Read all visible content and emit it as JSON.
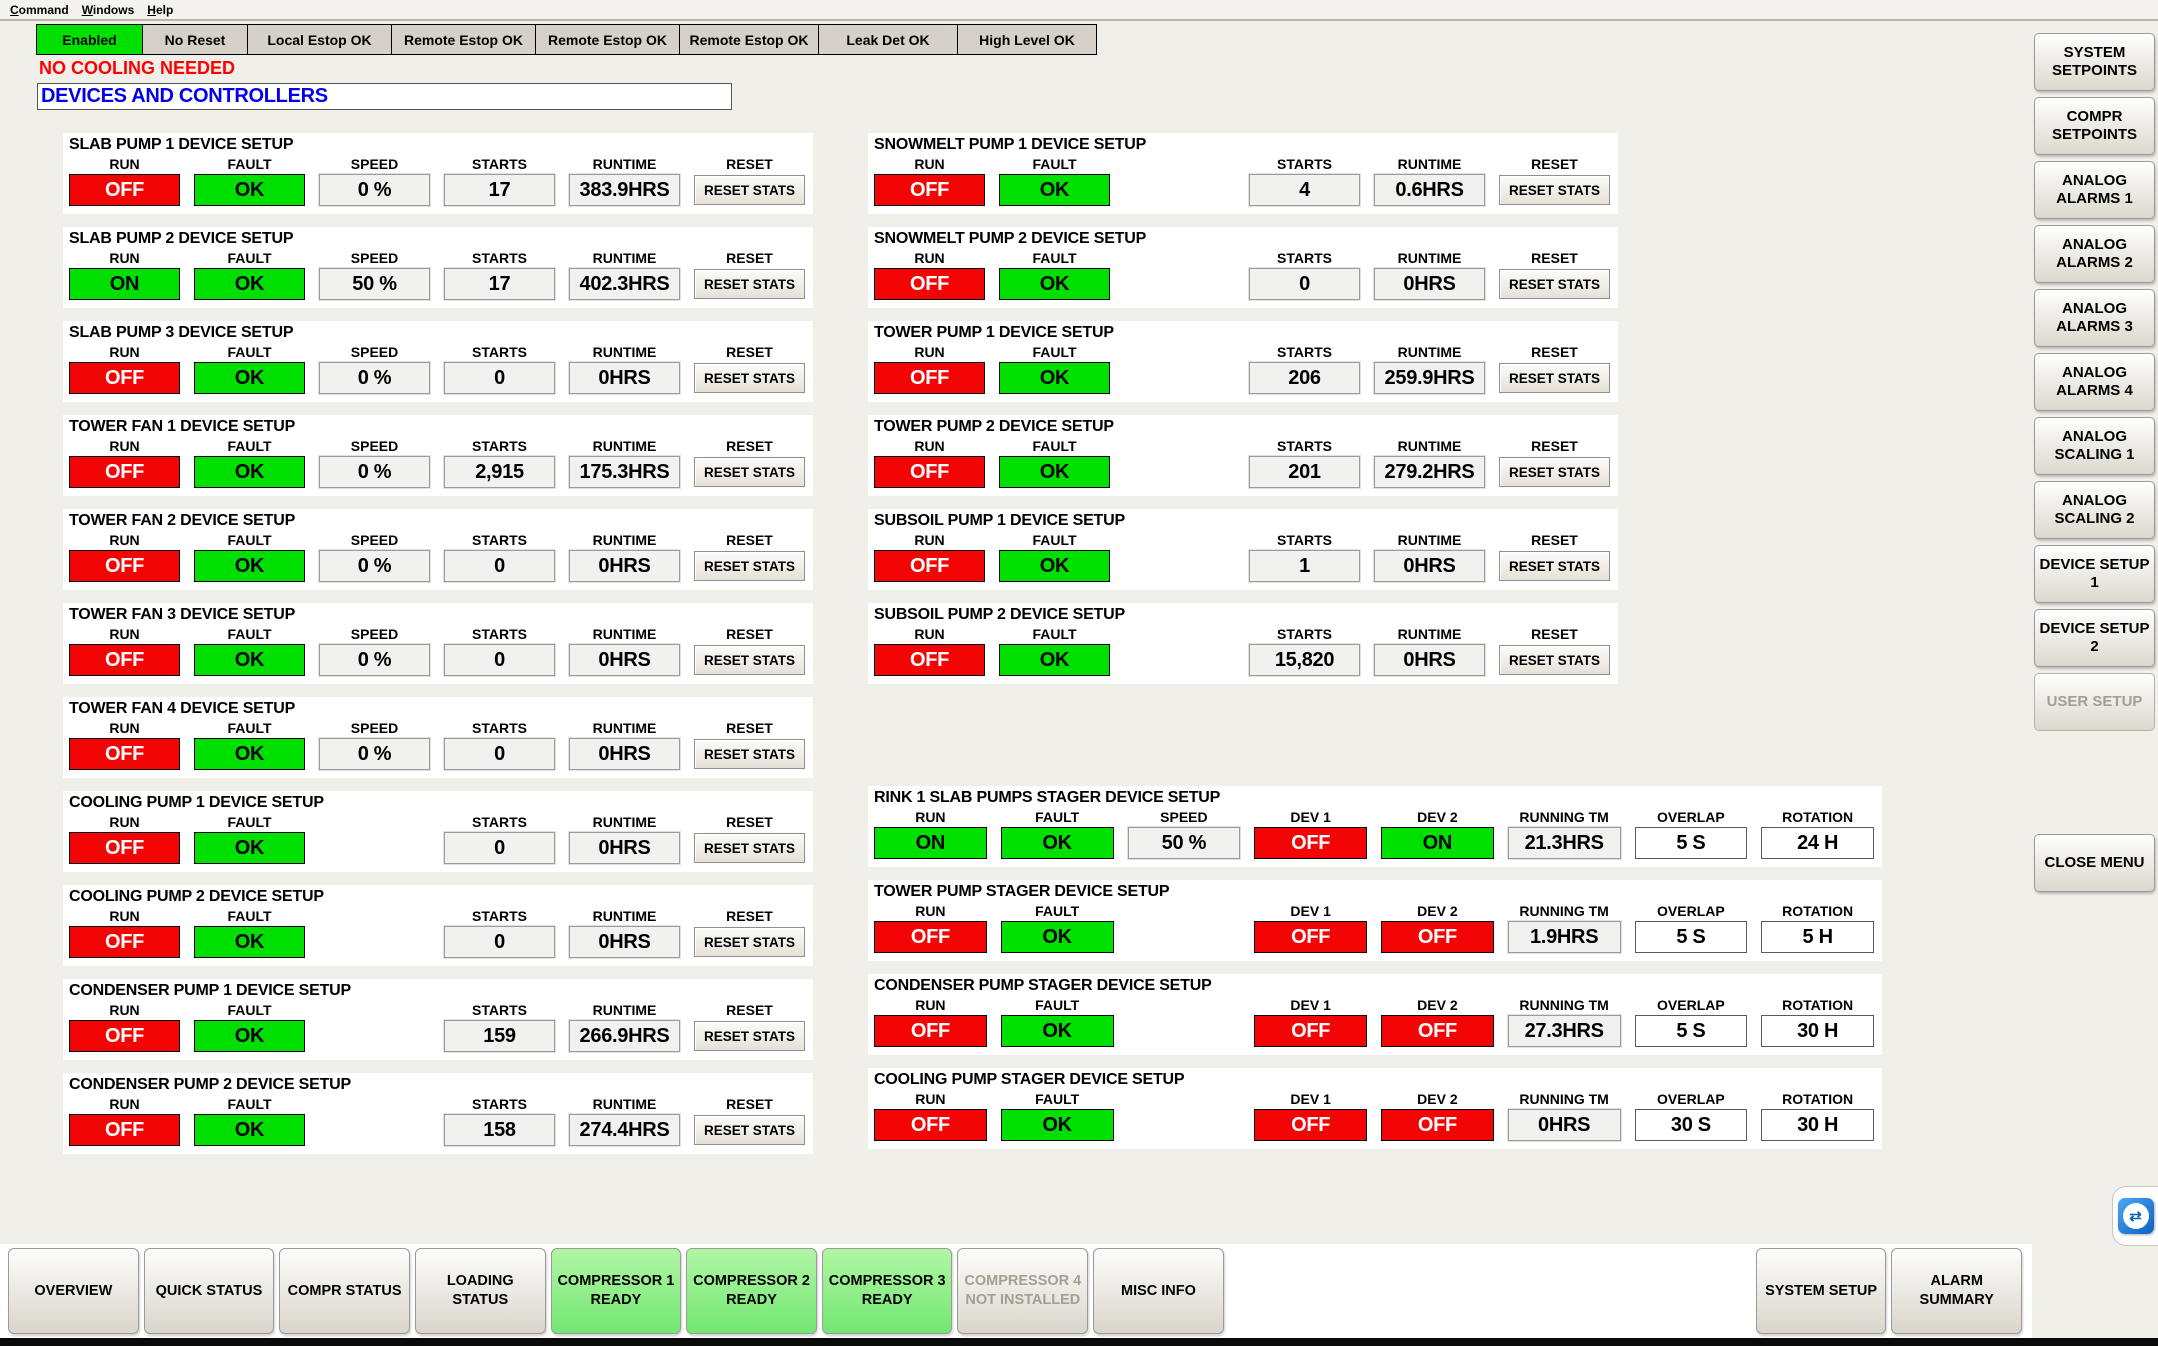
{
  "menu": {
    "items": [
      {
        "label": "Command"
      },
      {
        "label": "Windows"
      },
      {
        "label": "Help"
      }
    ]
  },
  "status_bar": {
    "buttons": [
      {
        "label": "Enabled",
        "highlight": "green"
      },
      {
        "label": "No Reset"
      },
      {
        "label": "Local Estop OK"
      },
      {
        "label": "Remote Estop OK"
      },
      {
        "label": "Remote Estop OK"
      },
      {
        "label": "Remote Estop OK"
      },
      {
        "label": "Leak Det OK"
      },
      {
        "label": "High Level OK"
      }
    ]
  },
  "messages": {
    "cooling_status": "NO COOLING NEEDED",
    "page_title": "DEVICES AND CONTROLLERS"
  },
  "labels": {
    "run": "RUN",
    "fault": "FAULT",
    "speed": "SPEED",
    "starts": "STARTS",
    "runtime": "RUNTIME",
    "reset": "RESET",
    "reset_stats": "RESET STATS",
    "dev1": "DEV 1",
    "dev2": "DEV 2",
    "running_tm": "RUNNING TM",
    "overlap": "OVERLAP",
    "rotation": "ROTATION"
  },
  "devices_left": [
    {
      "title": "SLAB PUMP 1 DEVICE SETUP",
      "run": "OFF",
      "run_on": false,
      "fault": "OK",
      "speed": "0 %",
      "starts": "17",
      "runtime": "383.9HRS"
    },
    {
      "title": "SLAB PUMP 2 DEVICE SETUP",
      "run": "ON",
      "run_on": true,
      "fault": "OK",
      "speed": "50 %",
      "starts": "17",
      "runtime": "402.3HRS"
    },
    {
      "title": "SLAB PUMP 3 DEVICE SETUP",
      "run": "OFF",
      "run_on": false,
      "fault": "OK",
      "speed": "0 %",
      "starts": "0",
      "runtime": "0HRS"
    },
    {
      "title": "TOWER FAN 1 DEVICE SETUP",
      "run": "OFF",
      "run_on": false,
      "fault": "OK",
      "speed": "0 %",
      "starts": "2,915",
      "runtime": "175.3HRS"
    },
    {
      "title": "TOWER FAN 2 DEVICE SETUP",
      "run": "OFF",
      "run_on": false,
      "fault": "OK",
      "speed": "0 %",
      "starts": "0",
      "runtime": "0HRS"
    },
    {
      "title": "TOWER FAN 3 DEVICE SETUP",
      "run": "OFF",
      "run_on": false,
      "fault": "OK",
      "speed": "0 %",
      "starts": "0",
      "runtime": "0HRS"
    },
    {
      "title": "TOWER FAN 4 DEVICE SETUP",
      "run": "OFF",
      "run_on": false,
      "fault": "OK",
      "speed": "0 %",
      "starts": "0",
      "runtime": "0HRS"
    },
    {
      "title": "COOLING PUMP 1 DEVICE SETUP",
      "run": "OFF",
      "run_on": false,
      "fault": "OK",
      "speed": null,
      "starts": "0",
      "runtime": "0HRS"
    },
    {
      "title": "COOLING PUMP 2 DEVICE SETUP",
      "run": "OFF",
      "run_on": false,
      "fault": "OK",
      "speed": null,
      "starts": "0",
      "runtime": "0HRS"
    },
    {
      "title": "CONDENSER PUMP 1 DEVICE SETUP",
      "run": "OFF",
      "run_on": false,
      "fault": "OK",
      "speed": null,
      "starts": "159",
      "runtime": "266.9HRS"
    },
    {
      "title": "CONDENSER PUMP 2 DEVICE SETUP",
      "run": "OFF",
      "run_on": false,
      "fault": "OK",
      "speed": null,
      "starts": "158",
      "runtime": "274.4HRS"
    }
  ],
  "devices_right": [
    {
      "title": "SNOWMELT PUMP 1 DEVICE SETUP",
      "run": "OFF",
      "run_on": false,
      "fault": "OK",
      "speed": null,
      "starts": "4",
      "runtime": "0.6HRS"
    },
    {
      "title": "SNOWMELT PUMP 2 DEVICE SETUP",
      "run": "OFF",
      "run_on": false,
      "fault": "OK",
      "speed": null,
      "starts": "0",
      "runtime": "0HRS"
    },
    {
      "title": "TOWER PUMP 1 DEVICE SETUP",
      "run": "OFF",
      "run_on": false,
      "fault": "OK",
      "speed": null,
      "starts": "206",
      "runtime": "259.9HRS"
    },
    {
      "title": "TOWER PUMP 2 DEVICE SETUP",
      "run": "OFF",
      "run_on": false,
      "fault": "OK",
      "speed": null,
      "starts": "201",
      "runtime": "279.2HRS"
    },
    {
      "title": "SUBSOIL PUMP 1 DEVICE SETUP",
      "run": "OFF",
      "run_on": false,
      "fault": "OK",
      "speed": null,
      "starts": "1",
      "runtime": "0HRS"
    },
    {
      "title": "SUBSOIL PUMP 2 DEVICE SETUP",
      "run": "OFF",
      "run_on": false,
      "fault": "OK",
      "speed": null,
      "starts": "15,820",
      "runtime": "0HRS"
    }
  ],
  "stagers": [
    {
      "title": "RINK 1 SLAB PUMPS STAGER DEVICE SETUP",
      "run": "ON",
      "run_on": true,
      "fault": "OK",
      "speed": "50 %",
      "dev1": "OFF",
      "dev1_on": false,
      "dev2": "ON",
      "dev2_on": true,
      "running_tm": "21.3HRS",
      "overlap": "5 S",
      "rotation": "24 H"
    },
    {
      "title": "TOWER PUMP STAGER DEVICE SETUP",
      "run": "OFF",
      "run_on": false,
      "fault": "OK",
      "speed": null,
      "dev1": "OFF",
      "dev1_on": false,
      "dev2": "OFF",
      "dev2_on": false,
      "running_tm": "1.9HRS",
      "overlap": "5 S",
      "rotation": "5 H"
    },
    {
      "title": "CONDENSER PUMP STAGER DEVICE SETUP",
      "run": "OFF",
      "run_on": false,
      "fault": "OK",
      "speed": null,
      "dev1": "OFF",
      "dev1_on": false,
      "dev2": "OFF",
      "dev2_on": false,
      "running_tm": "27.3HRS",
      "overlap": "5 S",
      "rotation": "30 H"
    },
    {
      "title": "COOLING PUMP STAGER DEVICE SETUP",
      "run": "OFF",
      "run_on": false,
      "fault": "OK",
      "speed": null,
      "dev1": "OFF",
      "dev1_on": false,
      "dev2": "OFF",
      "dev2_on": false,
      "running_tm": "0HRS",
      "overlap": "30 S",
      "rotation": "30 H"
    }
  ],
  "sidebar": {
    "buttons": [
      {
        "label": "SYSTEM SETPOINTS"
      },
      {
        "label": "COMPR SETPOINTS"
      },
      {
        "label": "ANALOG ALARMS 1"
      },
      {
        "label": "ANALOG ALARMS 2"
      },
      {
        "label": "ANALOG ALARMS 3"
      },
      {
        "label": "ANALOG ALARMS 4"
      },
      {
        "label": "ANALOG SCALING 1"
      },
      {
        "label": "ANALOG SCALING 2"
      },
      {
        "label": "DEVICE SETUP 1"
      },
      {
        "label": "DEVICE SETUP 2"
      },
      {
        "label": "USER SETUP",
        "disabled": true
      }
    ],
    "close_label": "CLOSE MENU"
  },
  "bottom_bar": {
    "buttons": [
      {
        "label": "OVERVIEW"
      },
      {
        "label": "QUICK STATUS"
      },
      {
        "label": "COMPR STATUS"
      },
      {
        "label": "LOADING STATUS"
      },
      {
        "label": "COMPRESSOR 1 READY",
        "state": "ready"
      },
      {
        "label": "COMPRESSOR 2 READY",
        "state": "ready"
      },
      {
        "label": "COMPRESSOR 3 READY",
        "state": "ready"
      },
      {
        "label": "COMPRESSOR 4 NOT INSTALLED",
        "state": "disabled"
      },
      {
        "label": "MISC INFO"
      }
    ],
    "right_buttons": [
      {
        "label": "SYSTEM SETUP"
      },
      {
        "label": "ALARM SUMMARY"
      }
    ]
  },
  "icons": {
    "teamviewer": "teamviewer-remote-icon",
    "teamviewer_glyph": "⇄"
  },
  "colors": {
    "on_green": "#00e000",
    "off_red": "#f40505",
    "ready_green": "#8df08d",
    "accent_blue": "#0000ee",
    "alert_red": "#ff0000"
  }
}
